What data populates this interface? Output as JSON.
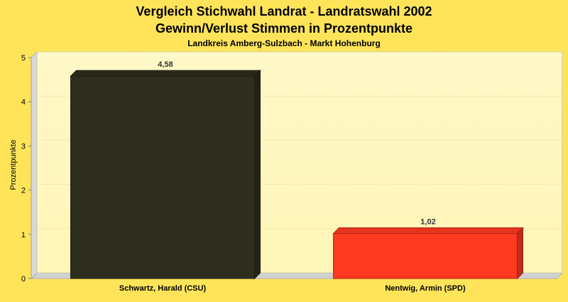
{
  "chart_data": {
    "type": "bar",
    "title": "Vergleich Stichwahl Landrat - Landratswahl 2002",
    "title2": "Gewinn/Verlust Stimmen in Prozentpunkte",
    "subtitle": "Landkreis Amberg-Sulzbach - Markt Hohenburg",
    "ylabel": "Prozentpunkte",
    "xlabel": "",
    "ylim": [
      0,
      5
    ],
    "yticks": [
      "0",
      "1",
      "2",
      "3",
      "4",
      "5"
    ],
    "grid": true,
    "categories": [
      "Schwartz, Harald (CSU)",
      "Nentwig, Armin (SPD)"
    ],
    "values": [
      4.58,
      1.02
    ],
    "value_labels": [
      "4,58",
      "1,02"
    ],
    "colors": [
      "#2e2e1e",
      "#ff3a20"
    ]
  }
}
